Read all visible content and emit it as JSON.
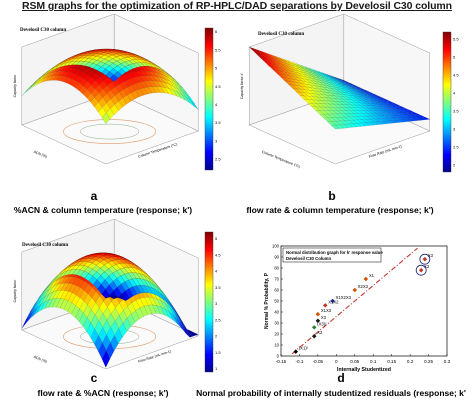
{
  "title": "RSM graphs for the optimization of RP-HPLC/DAD separations by Develosil C30 column",
  "colors": {
    "title": "#1a1a1a",
    "colormap": [
      "#00008f",
      "#0000ff",
      "#00ffff",
      "#ffff00",
      "#ff0000",
      "#800000"
    ],
    "probability_line": "#c0392b"
  },
  "panels": [
    {
      "letter": "a",
      "caption": "%ACN & column temperature (response; k')"
    },
    {
      "letter": "b",
      "caption": "flow rate & column temperature (response; k')"
    },
    {
      "letter": "c",
      "caption": "flow rate & %ACN (response; k')"
    },
    {
      "letter": "d",
      "caption": "Normal probability of internally studentized residuals (response; k'"
    }
  ],
  "chart_data": [
    {
      "type": "surface",
      "panel": "a",
      "title": "Develosil C30 column",
      "xlabel": "Column Temperature (°C)",
      "ylabel": "ACN (%)",
      "zlabel": "Capacity factor",
      "colorbar": {
        "ticks": [
          "2.5",
          "3",
          "3.5",
          "4",
          "4.5",
          "5",
          "5.5",
          "6"
        ],
        "range": [
          2.2,
          6.1
        ]
      },
      "zlim": [
        2,
        6
      ]
    },
    {
      "type": "surface",
      "panel": "b",
      "title": "Develosil C30 column",
      "xlabel": "Flow Rate (mL min-1)",
      "ylabel": "Column Temperature (°C)",
      "zlabel": "Capacity factor k'",
      "colorbar": {
        "ticks": [
          "2",
          "2.5",
          "3",
          "3.5",
          "4",
          "4.5",
          "5",
          "5.5"
        ],
        "range": [
          1.8,
          5.7
        ]
      },
      "zlim": [
        2,
        6
      ]
    },
    {
      "type": "surface",
      "panel": "c",
      "title": "Develosil C30 column",
      "xlabel": "Flow Rate (mL min-1)",
      "ylabel": "ACN (%)",
      "zlabel": "Capacity factor",
      "colorbar": {
        "ticks": [
          "1",
          "1.5",
          "2",
          "2.5",
          "3",
          "3.5",
          "4",
          "4.5",
          "5"
        ],
        "range": [
          0.9,
          5.2
        ]
      },
      "zlim": [
        1,
        5
      ]
    },
    {
      "type": "scatter",
      "panel": "d",
      "title": "Normal distribution graph for k' response value",
      "subtitle": "Develosil C30 Column",
      "xlabel": "Internally Studentized",
      "ylabel": "Normal % Probability, P",
      "xlim": [
        -0.15,
        0.3
      ],
      "ylim": [
        0,
        100
      ],
      "xticks": [
        "-0.15",
        "-0.1",
        "-0.05",
        "0",
        "0.05",
        "0.1",
        "0.15",
        "0.2",
        "0.25",
        "0.3"
      ],
      "yticks": [
        "0",
        "10",
        "20",
        "30",
        "40",
        "50",
        "60",
        "70",
        "80",
        "90",
        "100"
      ],
      "fit_line": {
        "x": [
          -0.12,
          0.22
        ],
        "y": [
          2,
          98
        ]
      },
      "points": [
        {
          "x": -0.11,
          "y": 4,
          "label": "(X1)²"
        },
        {
          "x": -0.06,
          "y": 18,
          "label": "X2"
        },
        {
          "x": -0.06,
          "y": 26,
          "label": "(X3)²"
        },
        {
          "x": -0.05,
          "y": 32,
          "label": "X3"
        },
        {
          "x": -0.05,
          "y": 38,
          "label": "X1X3"
        },
        {
          "x": -0.03,
          "y": 46,
          "label": "X1X2"
        },
        {
          "x": -0.01,
          "y": 50,
          "label": "X1X2X3"
        },
        {
          "x": 0.05,
          "y": 60,
          "label": "X2X3"
        },
        {
          "x": 0.08,
          "y": 70,
          "label": "X1"
        },
        {
          "x": 0.23,
          "y": 78,
          "label": "X2"
        },
        {
          "x": 0.24,
          "y": 88,
          "label": "X3"
        }
      ],
      "point_colors": [
        "#000000",
        "#1a1a1a",
        "#2e7d32",
        "#1a1a1a",
        "#d35400",
        "#c0392b",
        "#1a237e",
        "#d35400",
        "#d35400",
        "#c0392b",
        "#c0392b"
      ],
      "circled_points": [
        9,
        10
      ]
    }
  ]
}
